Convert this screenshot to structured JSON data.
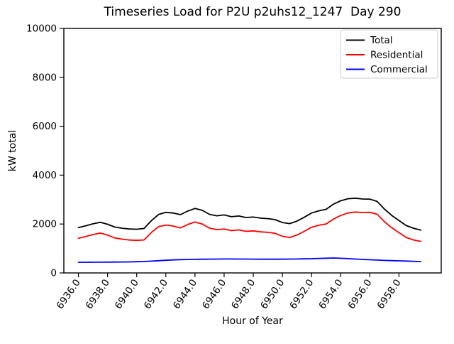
{
  "figure": {
    "background": "#ffffff",
    "title": "Timeseries Load for P2U p2uhs12_1247  Day 290"
  },
  "chart_data": {
    "type": "line",
    "title": "Timeseries Load for P2U p2uhs12_1247  Day 290",
    "xlabel": "Hour of Year",
    "ylabel": "kW total",
    "xlim": [
      6935.0,
      6960.9
    ],
    "ylim": [
      0,
      10000
    ],
    "grid": false,
    "xticks": [
      6936,
      6938,
      6940,
      6942,
      6944,
      6946,
      6948,
      6950,
      6952,
      6954,
      6956,
      6958
    ],
    "xtick_labels": [
      "6936.0",
      "6938.0",
      "6940.0",
      "6942.0",
      "6944.0",
      "6946.0",
      "6948.0",
      "6950.0",
      "6952.0",
      "6954.0",
      "6956.0",
      "6958.0"
    ],
    "yticks": [
      0,
      2000,
      4000,
      6000,
      8000,
      10000
    ],
    "ytick_labels": [
      "0",
      "2000",
      "4000",
      "6000",
      "8000",
      "10000"
    ],
    "legend": {
      "position": "upper right",
      "frame": true,
      "frame_color": "#cccccc",
      "entries": [
        "Total",
        "Residential",
        "Commercial"
      ]
    },
    "x": [
      6936.0,
      6936.5,
      6937.0,
      6937.5,
      6938.0,
      6938.5,
      6939.0,
      6939.5,
      6940.0,
      6940.5,
      6941.0,
      6941.5,
      6942.0,
      6942.5,
      6943.0,
      6943.5,
      6944.0,
      6944.5,
      6945.0,
      6945.5,
      6946.0,
      6946.5,
      6947.0,
      6947.5,
      6948.0,
      6948.5,
      6949.0,
      6949.5,
      6950.0,
      6950.5,
      6951.0,
      6951.5,
      6952.0,
      6952.5,
      6953.0,
      6953.5,
      6954.0,
      6954.5,
      6955.0,
      6955.5,
      6956.0,
      6956.5,
      6957.0,
      6957.5,
      6958.0,
      6958.5,
      6959.0,
      6959.5
    ],
    "series": [
      {
        "name": "Total",
        "color": "#000000",
        "values": [
          1855,
          1926,
          2008,
          2070,
          1992,
          1875,
          1828,
          1797,
          1788,
          1818,
          2132,
          2390,
          2478,
          2452,
          2383,
          2530,
          2636,
          2560,
          2395,
          2338,
          2371,
          2300,
          2328,
          2266,
          2284,
          2242,
          2221,
          2180,
          2062,
          2016,
          2120,
          2275,
          2452,
          2542,
          2603,
          2810,
          2950,
          3035,
          3058,
          3022,
          3018,
          2925,
          2612,
          2352,
          2144,
          1936,
          1828,
          1752
        ]
      },
      {
        "name": "Residential",
        "color": "#ff0000",
        "values": [
          1420,
          1490,
          1570,
          1630,
          1550,
          1430,
          1380,
          1345,
          1330,
          1350,
          1650,
          1890,
          1960,
          1920,
          1840,
          1980,
          2080,
          2000,
          1830,
          1770,
          1800,
          1730,
          1760,
          1700,
          1720,
          1680,
          1660,
          1620,
          1500,
          1450,
          1550,
          1700,
          1870,
          1950,
          2000,
          2200,
          2350,
          2450,
          2490,
          2470,
          2480,
          2400,
          2100,
          1850,
          1650,
          1450,
          1350,
          1290
        ]
      },
      {
        "name": "Commercial",
        "color": "#0000ff",
        "values": [
          435,
          436,
          438,
          440,
          442,
          445,
          448,
          452,
          458,
          468,
          482,
          500,
          518,
          532,
          543,
          550,
          556,
          560,
          565,
          568,
          571,
          570,
          568,
          566,
          564,
          562,
          561,
          560,
          562,
          566,
          570,
          575,
          582,
          592,
          603,
          610,
          600,
          585,
          568,
          552,
          538,
          525,
          512,
          502,
          494,
          486,
          478,
          462
        ]
      }
    ]
  }
}
